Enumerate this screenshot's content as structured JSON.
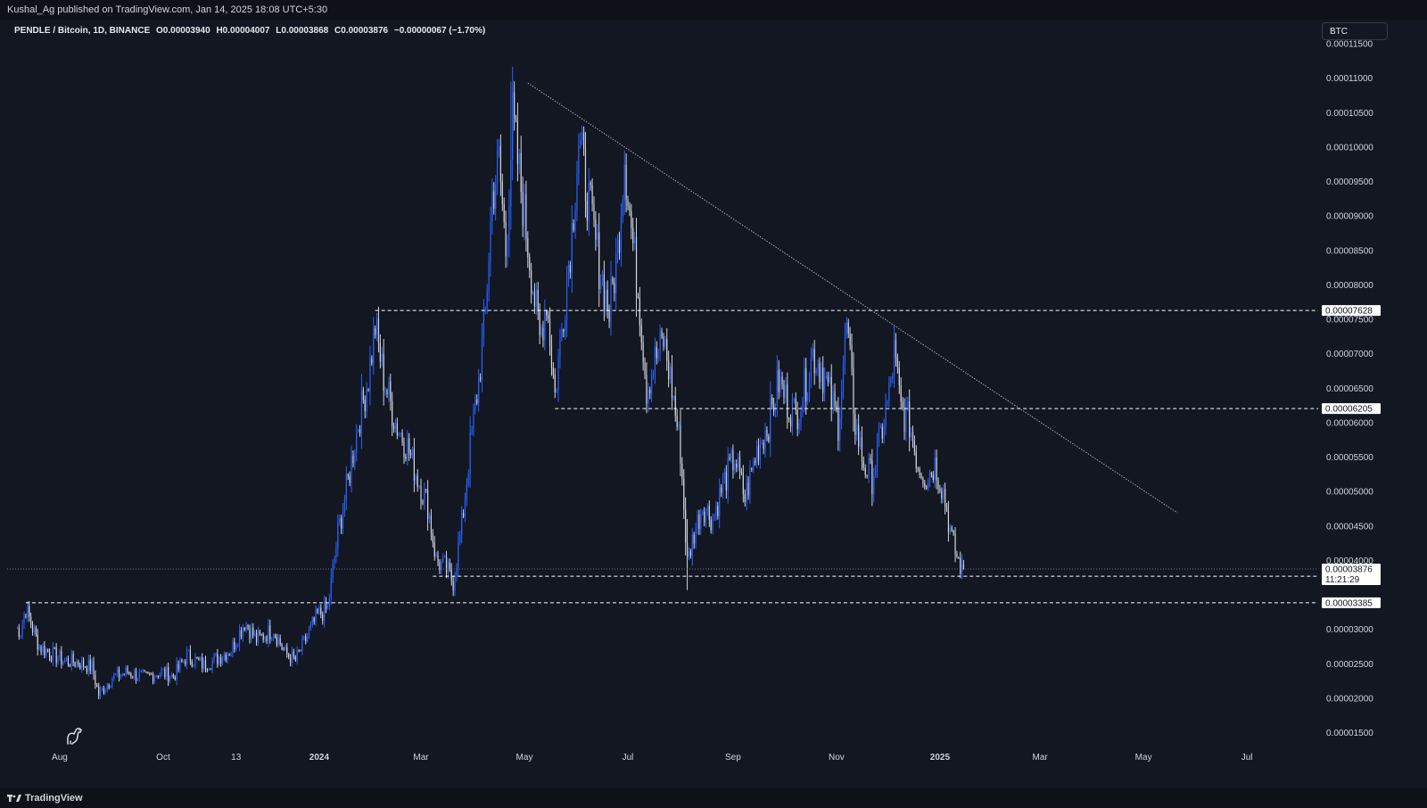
{
  "header": {
    "publisher": "Kushal_Ag published on TradingView.com, Jan 14, 2025 18:08 UTC+5:30"
  },
  "legend": {
    "symbol": "PENDLE / Bitcoin, 1D, BINANCE",
    "open": "O0.00003940",
    "high": "H0.00004007",
    "low": "L0.00003868",
    "close": "C0.00003876",
    "change": "−0.00000067 (−1.70%)"
  },
  "currency_button": "BTC",
  "footer": {
    "brand": "TradingView"
  },
  "colors": {
    "background": "#131722",
    "candle_up": "#2962ff",
    "candle_down": "#d1d4dc",
    "lines": "#ffffff"
  },
  "chart_data": {
    "type": "candlestick",
    "title": "PENDLE / Bitcoin, 1D, BINANCE",
    "y_axis": {
      "unit": "BTC",
      "ticks": [
        "0.00011500",
        "0.00011000",
        "0.00010500",
        "0.00010000",
        "0.00009500",
        "0.00009000",
        "0.00008500",
        "0.00008000",
        "0.00007500",
        "0.00007000",
        "0.00006500",
        "0.00006000",
        "0.00005500",
        "0.00005000",
        "0.00004500",
        "0.00004000",
        "0.00003000",
        "0.00002500",
        "0.00002000",
        "0.00001500"
      ],
      "range": [
        1.3e-05,
        0.0001185
      ]
    },
    "x_axis": {
      "ticks": [
        {
          "label": "Aug",
          "date": "2023-08-01",
          "bold": false
        },
        {
          "label": "Oct",
          "date": "2023-10-01",
          "bold": false
        },
        {
          "label": "13",
          "date": "2023-11-13",
          "bold": false
        },
        {
          "label": "2024",
          "date": "2024-01-01",
          "bold": true
        },
        {
          "label": "Mar",
          "date": "2024-03-01",
          "bold": false
        },
        {
          "label": "May",
          "date": "2024-05-01",
          "bold": false
        },
        {
          "label": "Jul",
          "date": "2024-07-01",
          "bold": false
        },
        {
          "label": "Sep",
          "date": "2024-09-01",
          "bold": false
        },
        {
          "label": "Nov",
          "date": "2024-11-01",
          "bold": false
        },
        {
          "label": "2025",
          "date": "2025-01-01",
          "bold": true
        },
        {
          "label": "Mar",
          "date": "2025-03-01",
          "bold": false
        },
        {
          "label": "May",
          "date": "2025-05-01",
          "bold": false
        },
        {
          "label": "Jul",
          "date": "2025-07-01",
          "bold": false
        }
      ],
      "range": [
        "2023-07-01",
        "2025-08-12"
      ]
    },
    "price_path": [
      [
        "2023-07-06",
        3.02e-05
      ],
      [
        "2023-07-09",
        2.98e-05
      ],
      [
        "2023-07-12",
        3.3e-05
      ],
      [
        "2023-07-16",
        3.02e-05
      ],
      [
        "2023-07-20",
        2.75e-05
      ],
      [
        "2023-07-27",
        2.65e-05
      ],
      [
        "2023-08-03",
        2.55e-05
      ],
      [
        "2023-08-12",
        2.52e-05
      ],
      [
        "2023-08-20",
        2.45e-05
      ],
      [
        "2023-08-24",
        2.05e-05
      ],
      [
        "2023-09-01",
        2.3e-05
      ],
      [
        "2023-09-10",
        2.38e-05
      ],
      [
        "2023-09-20",
        2.3e-05
      ],
      [
        "2023-09-30",
        2.38e-05
      ],
      [
        "2023-10-07",
        2.32e-05
      ],
      [
        "2023-10-15",
        2.62e-05
      ],
      [
        "2023-10-25",
        2.48e-05
      ],
      [
        "2023-11-02",
        2.58e-05
      ],
      [
        "2023-11-10",
        2.7e-05
      ],
      [
        "2023-11-18",
        3.1e-05
      ],
      [
        "2023-11-25",
        2.85e-05
      ],
      [
        "2023-12-05",
        3e-05
      ],
      [
        "2023-12-12",
        2.65e-05
      ],
      [
        "2023-12-18",
        2.55e-05
      ],
      [
        "2023-12-25",
        2.9e-05
      ],
      [
        "2023-12-31",
        3.2e-05
      ],
      [
        "2024-01-06",
        3.3e-05
      ],
      [
        "2024-01-12",
        4.4e-05
      ],
      [
        "2024-01-18",
        5.15e-05
      ],
      [
        "2024-01-24",
        6e-05
      ],
      [
        "2024-01-30",
        6.65e-05
      ],
      [
        "2024-02-03",
        7.4e-05
      ],
      [
        "2024-02-08",
        6.65e-05
      ],
      [
        "2024-02-15",
        6e-05
      ],
      [
        "2024-02-22",
        5.65e-05
      ],
      [
        "2024-02-28",
        5.2e-05
      ],
      [
        "2024-03-05",
        4.8e-05
      ],
      [
        "2024-03-10",
        4e-05
      ],
      [
        "2024-03-15",
        3.9e-05
      ],
      [
        "2024-03-20",
        3.7e-05
      ],
      [
        "2024-03-25",
        4.5e-05
      ],
      [
        "2024-03-30",
        5.65e-05
      ],
      [
        "2024-04-04",
        6.6e-05
      ],
      [
        "2024-04-08",
        7.6e-05
      ],
      [
        "2024-04-12",
        9.3e-05
      ],
      [
        "2024-04-16",
        9.8e-05
      ],
      [
        "2024-04-20",
        8.5e-05
      ],
      [
        "2024-04-24",
        0.000104
      ],
      [
        "2024-04-28",
        9.6e-05
      ],
      [
        "2024-05-02",
        8.8e-05
      ],
      [
        "2024-05-06",
        8e-05
      ],
      [
        "2024-05-10",
        7.2e-05
      ],
      [
        "2024-05-14",
        7.8e-05
      ],
      [
        "2024-05-19",
        6.4e-05
      ],
      [
        "2024-05-24",
        7.6e-05
      ],
      [
        "2024-05-29",
        8.8e-05
      ],
      [
        "2024-06-02",
        0.000101
      ],
      [
        "2024-06-08",
        9.2e-05
      ],
      [
        "2024-06-14",
        8.3e-05
      ],
      [
        "2024-06-20",
        7.6e-05
      ],
      [
        "2024-06-25",
        8.5e-05
      ],
      [
        "2024-06-29",
        9.9e-05
      ],
      [
        "2024-07-03",
        8.8e-05
      ],
      [
        "2024-07-08",
        7.7e-05
      ],
      [
        "2024-07-12",
        6.5e-05
      ],
      [
        "2024-07-17",
        6.9e-05
      ],
      [
        "2024-07-22",
        7.2e-05
      ],
      [
        "2024-07-27",
        6.5e-05
      ],
      [
        "2024-08-01",
        5.6e-05
      ],
      [
        "2024-08-05",
        3.95e-05
      ],
      [
        "2024-08-09",
        4.4e-05
      ],
      [
        "2024-08-14",
        4.8e-05
      ],
      [
        "2024-08-20",
        4.6e-05
      ],
      [
        "2024-08-26",
        5.1e-05
      ],
      [
        "2024-09-02",
        5.5e-05
      ],
      [
        "2024-09-08",
        4.9e-05
      ],
      [
        "2024-09-15",
        5.6e-05
      ],
      [
        "2024-09-22",
        6e-05
      ],
      [
        "2024-09-28",
        6.6e-05
      ],
      [
        "2024-10-03",
        6.3e-05
      ],
      [
        "2024-10-08",
        6.1e-05
      ],
      [
        "2024-10-13",
        6.5e-05
      ],
      [
        "2024-10-18",
        7e-05
      ],
      [
        "2024-10-23",
        6.8e-05
      ],
      [
        "2024-10-28",
        6.4e-05
      ],
      [
        "2024-11-02",
        6e-05
      ],
      [
        "2024-11-07",
        7.4e-05
      ],
      [
        "2024-11-12",
        6e-05
      ],
      [
        "2024-11-17",
        5.4e-05
      ],
      [
        "2024-11-22",
        5.2e-05
      ],
      [
        "2024-11-27",
        5.8e-05
      ],
      [
        "2024-12-02",
        6.4e-05
      ],
      [
        "2024-12-05",
        7e-05
      ],
      [
        "2024-12-09",
        6.2e-05
      ],
      [
        "2024-12-14",
        6e-05
      ],
      [
        "2024-12-19",
        5.4e-05
      ],
      [
        "2024-12-24",
        5.2e-05
      ],
      [
        "2024-12-29",
        5.4e-05
      ],
      [
        "2025-01-03",
        5e-05
      ],
      [
        "2025-01-08",
        4.3e-05
      ],
      [
        "2025-01-11",
        4.05e-05
      ],
      [
        "2025-01-14",
        3.88e-05
      ]
    ],
    "spikes": [
      {
        "date": "2023-07-06",
        "high": 4.47e-05,
        "low": 2.5e-05
      },
      {
        "date": "2024-04-23",
        "high": 0.0001095,
        "low": 8.8e-05
      },
      {
        "date": "2024-08-05",
        "high": 4.6e-05,
        "low": 3.57e-05
      }
    ],
    "last_candle": {
      "date": "2025-01-14",
      "open": 3.94e-05,
      "high": 4.007e-05,
      "low": 3.868e-05,
      "close": 3.876e-05
    },
    "horizontal_levels": [
      {
        "value": 7.628e-05,
        "label": "0.00007628",
        "from": "2024-02-03"
      },
      {
        "value": 6.205e-05,
        "label": "0.00006205",
        "from": "2024-05-19"
      },
      {
        "value": 3.771e-05,
        "label": "0.00003771",
        "from": "2024-03-08"
      },
      {
        "value": 3.385e-05,
        "label": "0.00003385",
        "from": "2023-07-12"
      }
    ],
    "trendline": {
      "start": [
        "2024-05-03",
        0.0001093
      ],
      "end": [
        "2025-05-21",
        4.69e-05
      ]
    },
    "last_price": {
      "value": 3.876e-05,
      "label": "0.00003876",
      "countdown": "11:21:29"
    }
  }
}
